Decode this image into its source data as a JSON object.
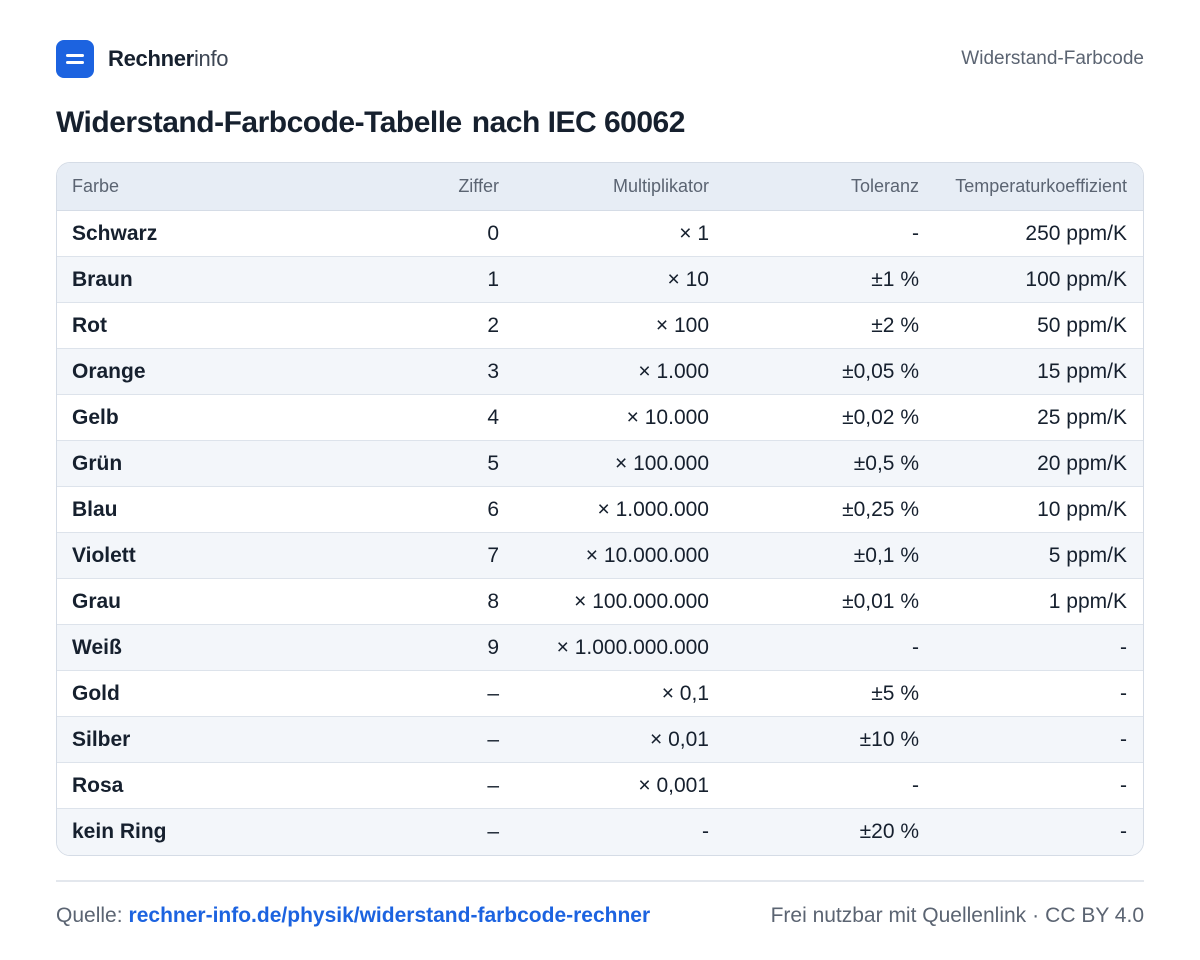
{
  "header": {
    "logo_strong": "Rechner",
    "logo_light": "info",
    "page_label": "Widerstand-Farbcode"
  },
  "title": {
    "part1": "Widerstand-Farbcode-Tabelle",
    "part2": "nach IEC 60062"
  },
  "table": {
    "columns": [
      "Farbe",
      "Ziffer",
      "Multiplikator",
      "Toleranz",
      "Temperaturkoeffizient"
    ],
    "rows": [
      [
        "Schwarz",
        "0",
        "× 1",
        "-",
        "250 ppm/K"
      ],
      [
        "Braun",
        "1",
        "× 10",
        "±1 %",
        "100 ppm/K"
      ],
      [
        "Rot",
        "2",
        "× 100",
        "±2 %",
        "50 ppm/K"
      ],
      [
        "Orange",
        "3",
        "× 1.000",
        "±0,05 %",
        "15 ppm/K"
      ],
      [
        "Gelb",
        "4",
        "× 10.000",
        "±0,02 %",
        "25 ppm/K"
      ],
      [
        "Grün",
        "5",
        "× 100.000",
        "±0,5 %",
        "20 ppm/K"
      ],
      [
        "Blau",
        "6",
        "× 1.000.000",
        "±0,25 %",
        "10 ppm/K"
      ],
      [
        "Violett",
        "7",
        "× 10.000.000",
        "±0,1 %",
        "5 ppm/K"
      ],
      [
        "Grau",
        "8",
        "× 100.000.000",
        "±0,01 %",
        "1 ppm/K"
      ],
      [
        "Weiß",
        "9",
        "× 1.000.000.000",
        "-",
        "-"
      ],
      [
        "Gold",
        "–",
        "× 0,1",
        "±5 %",
        "-"
      ],
      [
        "Silber",
        "–",
        "× 0,01",
        "±10 %",
        "-"
      ],
      [
        "Rosa",
        "–",
        "× 0,001",
        "-",
        "-"
      ],
      [
        "kein Ring",
        "–",
        "-",
        "±20 %",
        "-"
      ]
    ]
  },
  "footer": {
    "source_label": "Quelle:",
    "source_link": "rechner-info.de/physik/widerstand-farbcode-rechner",
    "usage_note": "Frei nutzbar mit Quellenlink",
    "separator": "·",
    "license": "CC BY 4.0"
  },
  "colors": {
    "brand_blue": "#1c63e0",
    "text_dark": "#16202e",
    "text_muted": "#5b6472",
    "header_bg": "#e7edf5",
    "row_alt_bg": "#f3f6fa"
  }
}
